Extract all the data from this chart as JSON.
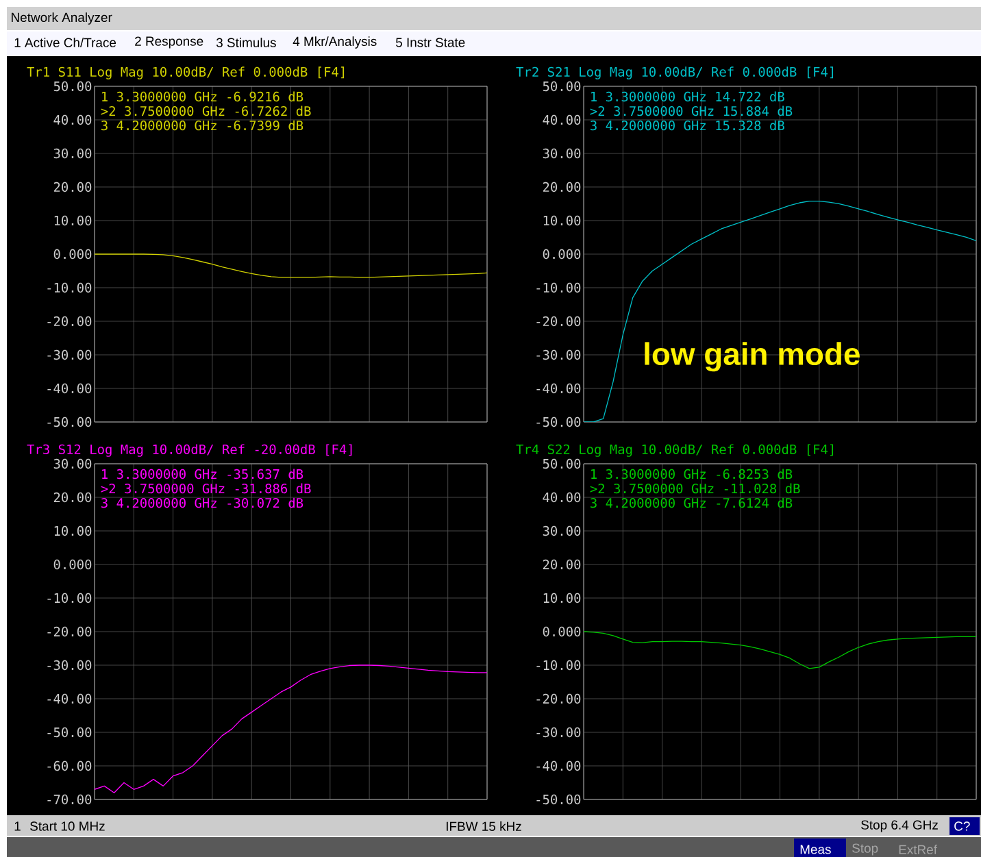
{
  "chart_data": [
    {
      "type": "other",
      "title": "Network Analyzer",
      "annotations": [
        "1 Active Ch/Trace",
        "2 Response",
        "3 Stimulus",
        "4 Mkr/Analysis",
        "5 Instr State",
        "1",
        "Start 10 MHz",
        "IFBW 15 kHz",
        "Stop 6.4 GHz",
        "C?",
        "Meas",
        "Stop",
        "ExtRef"
      ]
    },
    {
      "type": "line",
      "title": "Tr1 S11 Log Mag 10.00dB/ Ref 0.000dB [F4]",
      "color": "#d2d200",
      "grid": true,
      "tick_labels": "y",
      "categories": [
        null,
        null,
        null,
        null,
        null,
        null,
        null,
        null,
        null,
        null,
        null,
        null,
        null,
        null,
        null,
        null,
        null,
        null,
        null,
        null,
        null,
        null,
        null,
        null,
        null,
        null,
        null,
        null,
        null,
        null,
        null,
        null,
        null,
        null,
        null,
        null,
        null,
        null,
        null,
        null,
        null
      ],
      "values": [
        0,
        0,
        0,
        0,
        0,
        0,
        -0.1,
        -0.2,
        -0.5,
        -1.0,
        -1.6,
        -2.3,
        -3.0,
        -3.8,
        -4.5,
        -5.2,
        -5.8,
        -6.3,
        -6.7,
        -6.9,
        -6.9,
        -6.9,
        -6.9,
        -6.8,
        -6.7,
        -6.8,
        -6.8,
        -6.9,
        -6.9,
        -6.8,
        -6.7,
        -6.6,
        -6.5,
        -6.4,
        -6.3,
        -6.2,
        -6.1,
        -6.0,
        -5.9,
        -5.8,
        -5.6
      ],
      "ylim": [
        -50,
        50
      ],
      "yticks": [
        {
          "value": 50,
          "label": "50.00"
        },
        {
          "value": 40,
          "label": "40.00"
        },
        {
          "value": 30,
          "label": "30.00"
        },
        {
          "value": 20,
          "label": "20.00"
        },
        {
          "value": 10,
          "label": "10.00"
        },
        {
          "value": 0,
          "label": "0.000"
        },
        {
          "value": -10,
          "label": "-10.00"
        },
        {
          "value": -20,
          "label": "-20.00"
        },
        {
          "value": -30,
          "label": "-30.00"
        },
        {
          "value": -40,
          "label": "-40.00"
        },
        {
          "value": -50,
          "label": "-50.00"
        }
      ],
      "annotations": [
        "1 3.3000000 GHz -6.9216 dB",
        ">2 3.7500000 GHz -6.7262 dB",
        "3 4.2000000 GHz -6.7399 dB"
      ]
    },
    {
      "type": "line",
      "title": "Tr2 S21 Log Mag 10.00dB/ Ref 0.000dB [F4]",
      "color": "#00c0c8",
      "grid": true,
      "tick_labels": "y",
      "categories": [
        null,
        null,
        null,
        null,
        null,
        null,
        null,
        null,
        null,
        null,
        null,
        null,
        null,
        null,
        null,
        null,
        null,
        null,
        null,
        null,
        null,
        null,
        null,
        null,
        null,
        null,
        null,
        null,
        null,
        null,
        null,
        null,
        null,
        null,
        null,
        null,
        null,
        null,
        null,
        null,
        null
      ],
      "values": [
        -50,
        -50,
        -49,
        -38,
        -24,
        -13,
        -8,
        -5,
        -3,
        -1,
        1,
        3,
        4.5,
        6,
        7.5,
        8.5,
        9.5,
        10.5,
        11.5,
        12.5,
        13.5,
        14.5,
        15.3,
        15.8,
        15.8,
        15.5,
        15.0,
        14.3,
        13.5,
        12.7,
        11.8,
        11.0,
        10.2,
        9.5,
        8.7,
        8.0,
        7.2,
        6.5,
        5.8,
        5.0,
        4.0
      ],
      "ylim": [
        -50,
        50
      ],
      "yticks": [
        {
          "value": 50,
          "label": "50.00"
        },
        {
          "value": 40,
          "label": "40.00"
        },
        {
          "value": 30,
          "label": "30.00"
        },
        {
          "value": 20,
          "label": "20.00"
        },
        {
          "value": 10,
          "label": "10.00"
        },
        {
          "value": 0,
          "label": "0.000"
        },
        {
          "value": -10,
          "label": "-10.00"
        },
        {
          "value": -20,
          "label": "-20.00"
        },
        {
          "value": -30,
          "label": "-30.00"
        },
        {
          "value": -40,
          "label": "-40.00"
        },
        {
          "value": -50,
          "label": "-50.00"
        }
      ],
      "annotations": [
        "1 3.3000000 GHz 14.722 dB",
        ">2 3.7500000 GHz 15.884 dB",
        "3 4.2000000 GHz 15.328 dB",
        "low gain mode"
      ]
    },
    {
      "type": "line",
      "title": "Tr3 S12 Log Mag 10.00dB/ Ref -20.00dB [F4]",
      "color": "#ff00ff",
      "grid": true,
      "tick_labels": "y",
      "categories": [
        null,
        null,
        null,
        null,
        null,
        null,
        null,
        null,
        null,
        null,
        null,
        null,
        null,
        null,
        null,
        null,
        null,
        null,
        null,
        null,
        null,
        null,
        null,
        null,
        null,
        null,
        null,
        null,
        null,
        null,
        null,
        null,
        null,
        null,
        null,
        null,
        null,
        null,
        null,
        null,
        null
      ],
      "values": [
        -67,
        -66,
        -68,
        -65,
        -67,
        -66,
        -64,
        -66,
        -63,
        -62,
        -60,
        -57,
        -54,
        -51,
        -49,
        -46,
        -44,
        -42,
        -40,
        -38,
        -36.5,
        -34.5,
        -32.8,
        -31.8,
        -31.0,
        -30.5,
        -30.1,
        -30.0,
        -30.0,
        -30.1,
        -30.3,
        -30.6,
        -30.9,
        -31.2,
        -31.5,
        -31.7,
        -31.9,
        -32.0,
        -32.1,
        -32.2,
        -32.2
      ],
      "ylim": [
        -70,
        30
      ],
      "yticks": [
        {
          "value": 30,
          "label": "30.00"
        },
        {
          "value": 20,
          "label": "20.00"
        },
        {
          "value": 10,
          "label": "10.00"
        },
        {
          "value": 0,
          "label": "0.000"
        },
        {
          "value": -10,
          "label": "-10.00"
        },
        {
          "value": -20,
          "label": "-20.00"
        },
        {
          "value": -30,
          "label": "-30.00"
        },
        {
          "value": -40,
          "label": "-40.00"
        },
        {
          "value": -50,
          "label": "-50.00"
        },
        {
          "value": -60,
          "label": "-60.00"
        },
        {
          "value": -70,
          "label": "-70.00"
        }
      ],
      "annotations": [
        "1 3.3000000 GHz -35.637 dB",
        ">2 3.7500000 GHz -31.886 dB",
        "3 4.2000000 GHz -30.072 dB"
      ]
    },
    {
      "type": "line",
      "title": "Tr4 S22 Log Mag 10.00dB/ Ref 0.000dB [F4]",
      "color": "#00c800",
      "grid": true,
      "tick_labels": "y",
      "categories": [
        null,
        null,
        null,
        null,
        null,
        null,
        null,
        null,
        null,
        null,
        null,
        null,
        null,
        null,
        null,
        null,
        null,
        null,
        null,
        null,
        null,
        null,
        null,
        null,
        null,
        null,
        null,
        null,
        null,
        null,
        null,
        null,
        null,
        null,
        null,
        null,
        null,
        null,
        null,
        null,
        null
      ],
      "values": [
        0,
        -0.2,
        -0.5,
        -1.2,
        -2.2,
        -3.2,
        -3.3,
        -3.0,
        -3.0,
        -2.9,
        -2.9,
        -3.0,
        -3.0,
        -3.2,
        -3.4,
        -3.7,
        -4.0,
        -4.5,
        -5.2,
        -6.0,
        -6.8,
        -7.9,
        -9.6,
        -11.0,
        -10.6,
        -9.0,
        -7.6,
        -6.0,
        -4.7,
        -3.7,
        -3.0,
        -2.5,
        -2.2,
        -2.0,
        -1.9,
        -1.8,
        -1.7,
        -1.6,
        -1.5,
        -1.5,
        -1.5
      ],
      "ylim": [
        -50,
        50
      ],
      "yticks": [
        {
          "value": 50,
          "label": "50.00"
        },
        {
          "value": 40,
          "label": "40.00"
        },
        {
          "value": 30,
          "label": "30.00"
        },
        {
          "value": 20,
          "label": "20.00"
        },
        {
          "value": 10,
          "label": "10.00"
        },
        {
          "value": 0,
          "label": "0.000"
        },
        {
          "value": -10,
          "label": "-10.00"
        },
        {
          "value": -20,
          "label": "-20.00"
        },
        {
          "value": -30,
          "label": "-30.00"
        },
        {
          "value": -40,
          "label": "-40.00"
        },
        {
          "value": -50,
          "label": "-50.00"
        }
      ],
      "annotations": [
        "1 3.3000000 GHz -6.8253 dB",
        ">2 3.7500000 GHz -11.028 dB",
        "3 4.2000000 GHz -7.6124 dB"
      ]
    }
  ]
}
